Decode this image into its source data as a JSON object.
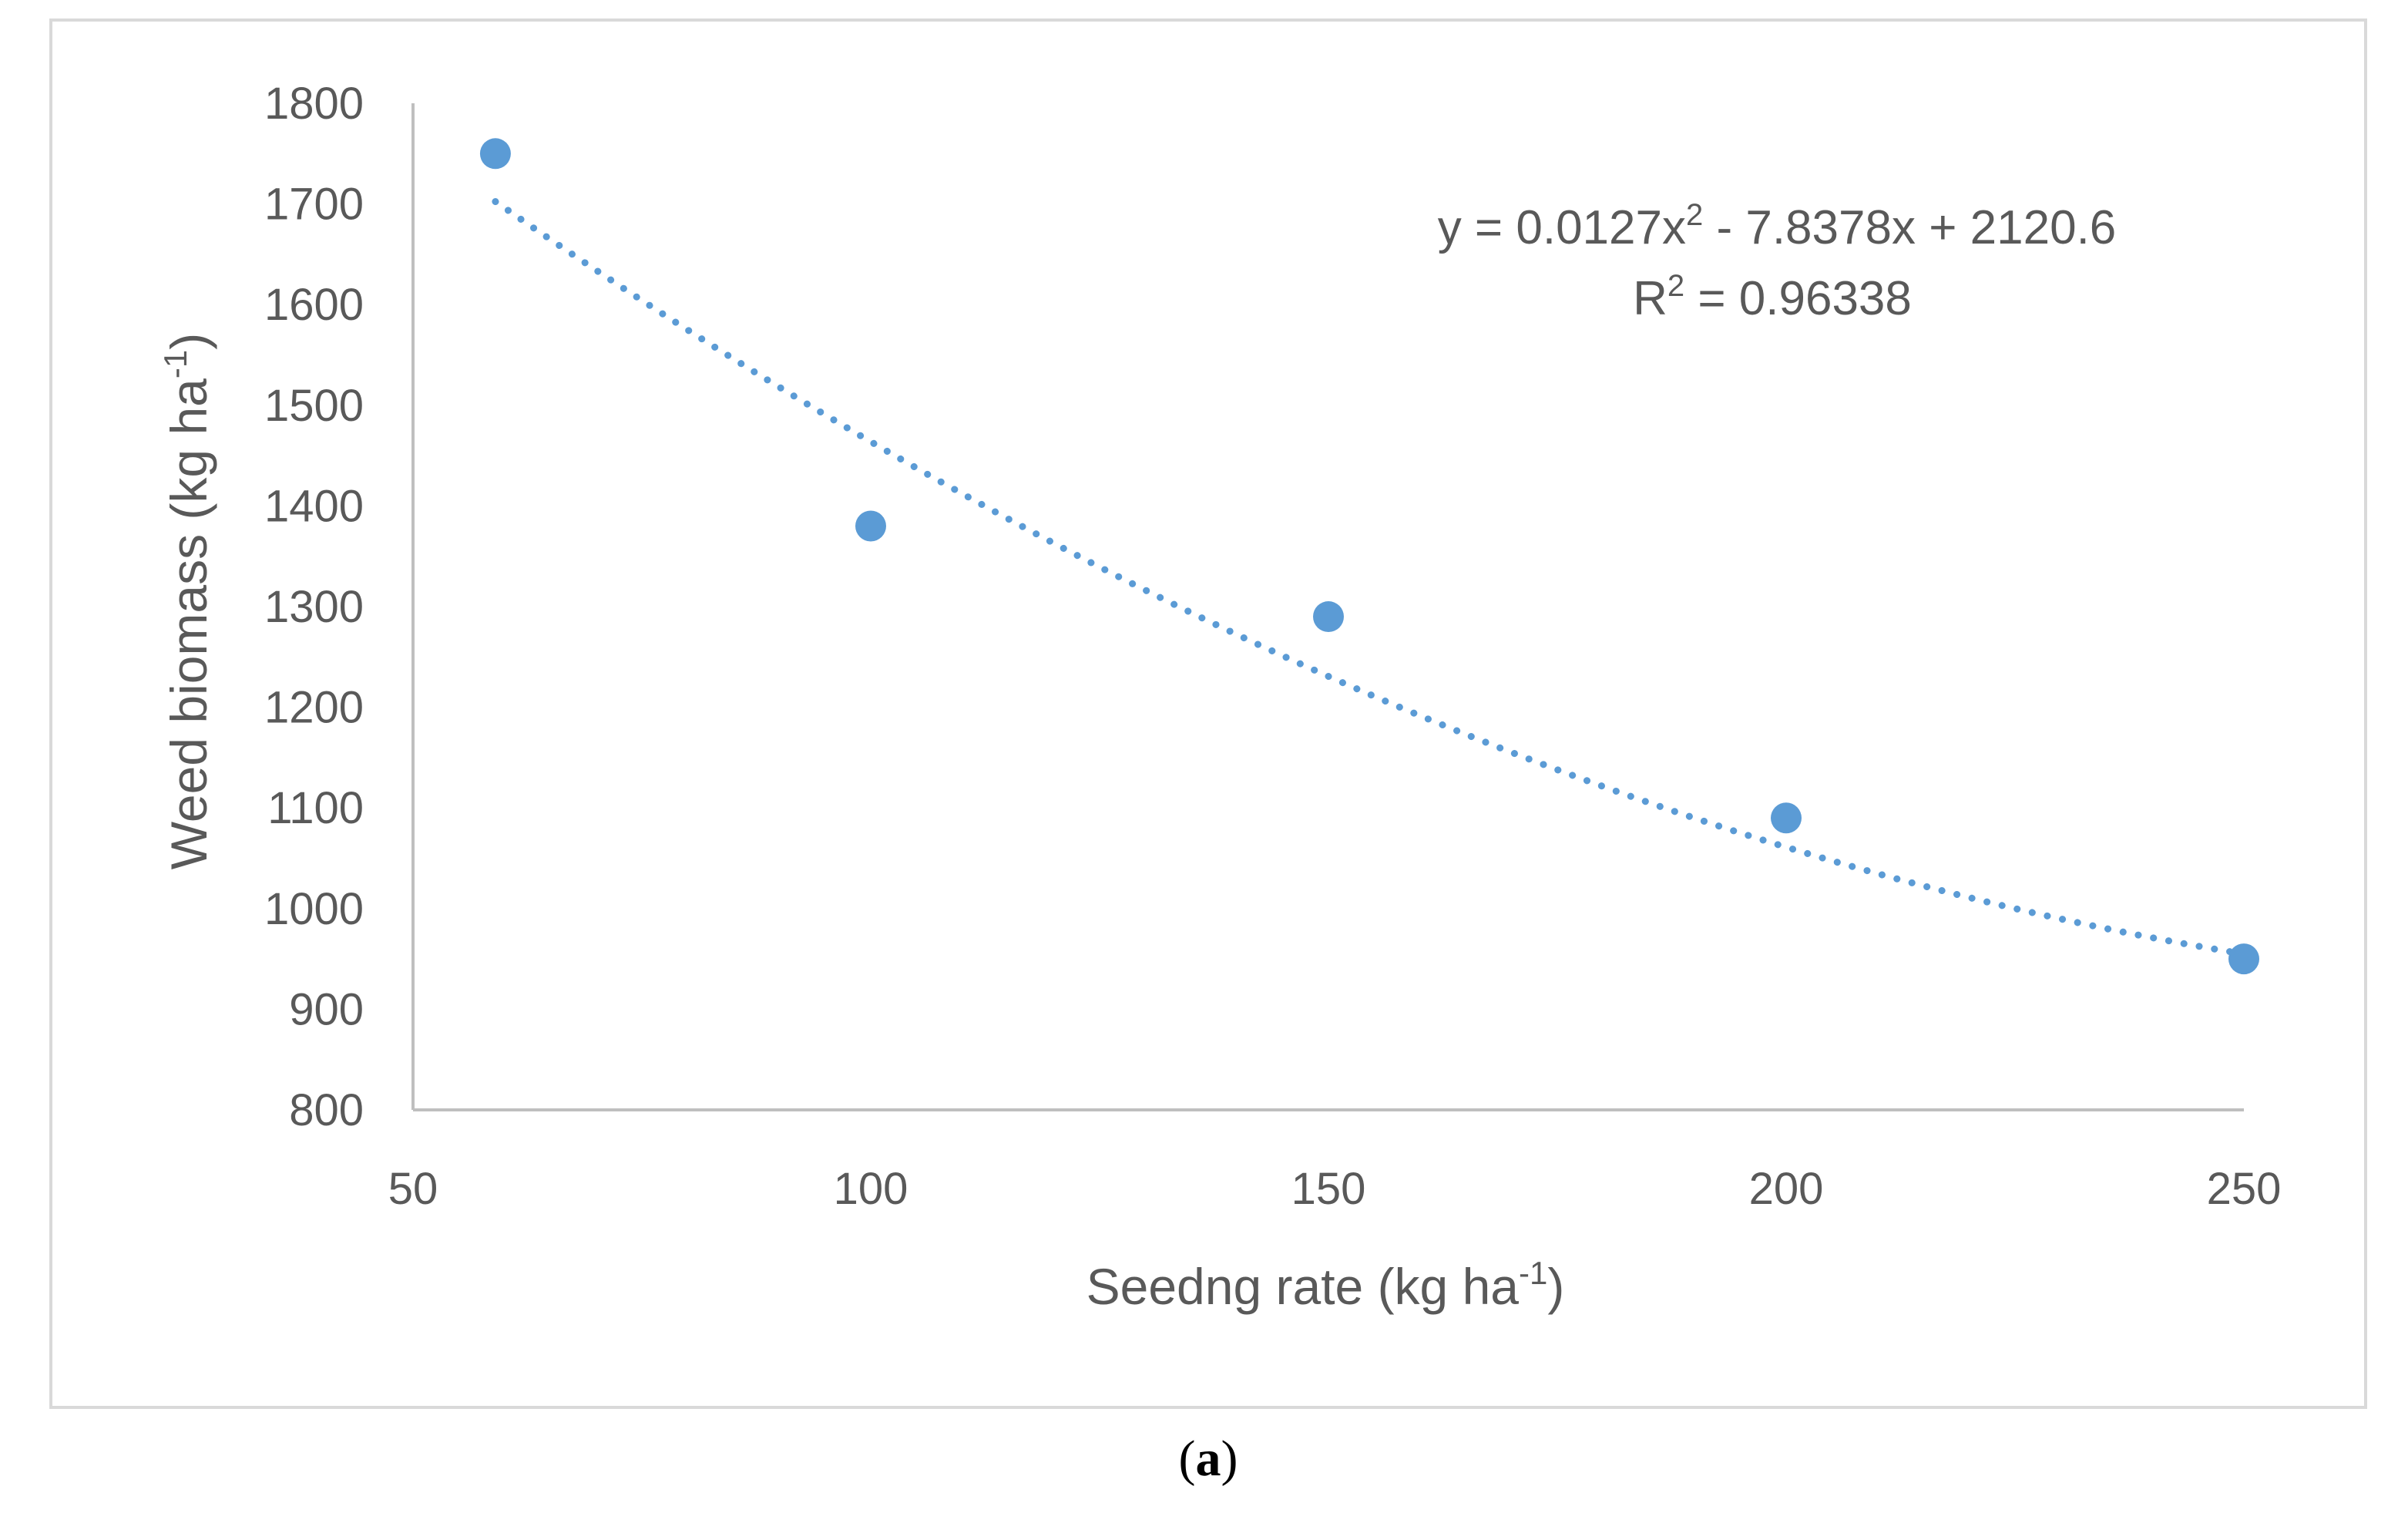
{
  "chart_data": {
    "type": "scatter",
    "title": "",
    "xlabel": {
      "main": "Seedng rate (kg ha",
      "sup": "-1",
      "tail": ")"
    },
    "ylabel": {
      "main": "Weed biomass (kg ha",
      "sup": "-1",
      "tail": ")"
    },
    "xlim": [
      50,
      250
    ],
    "ylim": [
      800,
      1800
    ],
    "xticks": [
      50,
      100,
      150,
      200,
      250
    ],
    "yticks": [
      800,
      900,
      1000,
      1100,
      1200,
      1300,
      1400,
      1500,
      1600,
      1700,
      1800
    ],
    "series": [
      {
        "name": "Weed biomass",
        "color": "#5b9bd5",
        "points": [
          {
            "x": 59,
            "y": 1750
          },
          {
            "x": 100,
            "y": 1380
          },
          {
            "x": 150,
            "y": 1290
          },
          {
            "x": 200,
            "y": 1090
          },
          {
            "x": 250,
            "y": 950
          }
        ]
      }
    ],
    "trendline": {
      "type": "polynomial",
      "order": 2,
      "style": "dotted",
      "color": "#5b9bd5",
      "coefficients": {
        "a": 0.0127,
        "b": -7.8378,
        "c": 2120.6
      },
      "x_range": [
        59,
        250
      ],
      "equation": {
        "pre": "y = 0.0127x",
        "sup": "2",
        "post": " - 7.8378x + 2120.6"
      },
      "r_squared": {
        "pre": "R",
        "sup": "2",
        "post": " = 0.96338"
      }
    },
    "axis_color": "#bfbfbf",
    "frame_color": "#d9d9d9"
  },
  "caption": {
    "open": "(",
    "letter": "a",
    "close": ")"
  }
}
